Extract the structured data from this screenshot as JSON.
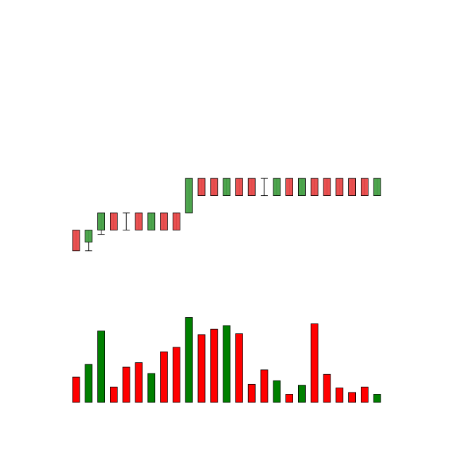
{
  "chart_data": {
    "type": "candlestick-with-volume",
    "title": "",
    "xlabel": "",
    "ylabel": "",
    "grid": false,
    "legend": "none",
    "colors": {
      "up_candle": "#44a044",
      "down_candle": "#e84848",
      "up_volume": "#008000",
      "down_volume": "#ff0000",
      "outline": "#000000",
      "background": "#ffffff"
    },
    "price_ylim": [
      0,
      21.8
    ],
    "volume_ylim": [
      0,
      1.1
    ],
    "candles": [
      {
        "open": 10,
        "high": 10,
        "low": 8.8,
        "close": 8.8,
        "direction": "down"
      },
      {
        "open": 9.3,
        "high": 10,
        "low": 8.8,
        "close": 10,
        "direction": "up"
      },
      {
        "open": 10,
        "high": 11,
        "low": 9.75,
        "close": 11,
        "direction": "up"
      },
      {
        "open": 11,
        "high": 11,
        "low": 10,
        "close": 10,
        "direction": "down"
      },
      {
        "open": 10,
        "high": 11,
        "low": 10,
        "close": 10,
        "direction": "down"
      },
      {
        "open": 11,
        "high": 11,
        "low": 10,
        "close": 10,
        "direction": "down"
      },
      {
        "open": 10,
        "high": 11,
        "low": 10,
        "close": 11,
        "direction": "up"
      },
      {
        "open": 11,
        "high": 11,
        "low": 10,
        "close": 10,
        "direction": "down"
      },
      {
        "open": 11,
        "high": 11,
        "low": 10,
        "close": 10,
        "direction": "down"
      },
      {
        "open": 11,
        "high": 13,
        "low": 11,
        "close": 13,
        "direction": "up"
      },
      {
        "open": 13,
        "high": 13,
        "low": 12,
        "close": 12,
        "direction": "down"
      },
      {
        "open": 13,
        "high": 13,
        "low": 12,
        "close": 12,
        "direction": "down"
      },
      {
        "open": 12,
        "high": 13,
        "low": 12,
        "close": 13,
        "direction": "up"
      },
      {
        "open": 13,
        "high": 13,
        "low": 12,
        "close": 12,
        "direction": "down"
      },
      {
        "open": 13,
        "high": 13,
        "low": 12,
        "close": 12,
        "direction": "down"
      },
      {
        "open": 12,
        "high": 13,
        "low": 11.99,
        "close": 12,
        "direction": "down"
      },
      {
        "open": 12,
        "high": 13,
        "low": 12,
        "close": 13,
        "direction": "up"
      },
      {
        "open": 13,
        "high": 13,
        "low": 12,
        "close": 12,
        "direction": "down"
      },
      {
        "open": 12,
        "high": 13,
        "low": 12,
        "close": 13,
        "direction": "up"
      },
      {
        "open": 13,
        "high": 13,
        "low": 12,
        "close": 12,
        "direction": "down"
      },
      {
        "open": 13,
        "high": 13,
        "low": 12,
        "close": 12,
        "direction": "down"
      },
      {
        "open": 13,
        "high": 13,
        "low": 12,
        "close": 12,
        "direction": "down"
      },
      {
        "open": 13,
        "high": 13,
        "low": 12,
        "close": 12,
        "direction": "down"
      },
      {
        "open": 13,
        "high": 13,
        "low": 12,
        "close": 12,
        "direction": "down"
      },
      {
        "open": 12,
        "high": 13,
        "low": 12,
        "close": 13,
        "direction": "up"
      }
    ],
    "volume": [
      {
        "value": 0.28,
        "direction": "down"
      },
      {
        "value": 0.42,
        "direction": "up"
      },
      {
        "value": 0.79,
        "direction": "up"
      },
      {
        "value": 0.17,
        "direction": "down"
      },
      {
        "value": 0.39,
        "direction": "down"
      },
      {
        "value": 0.44,
        "direction": "down"
      },
      {
        "value": 0.32,
        "direction": "up"
      },
      {
        "value": 0.56,
        "direction": "down"
      },
      {
        "value": 0.61,
        "direction": "down"
      },
      {
        "value": 0.94,
        "direction": "up"
      },
      {
        "value": 0.75,
        "direction": "down"
      },
      {
        "value": 0.81,
        "direction": "down"
      },
      {
        "value": 0.85,
        "direction": "up"
      },
      {
        "value": 0.76,
        "direction": "down"
      },
      {
        "value": 0.2,
        "direction": "down"
      },
      {
        "value": 0.36,
        "direction": "down"
      },
      {
        "value": 0.24,
        "direction": "up"
      },
      {
        "value": 0.09,
        "direction": "down"
      },
      {
        "value": 0.19,
        "direction": "up"
      },
      {
        "value": 0.87,
        "direction": "down"
      },
      {
        "value": 0.31,
        "direction": "down"
      },
      {
        "value": 0.16,
        "direction": "down"
      },
      {
        "value": 0.11,
        "direction": "down"
      },
      {
        "value": 0.17,
        "direction": "down"
      },
      {
        "value": 0.09,
        "direction": "up"
      }
    ]
  }
}
